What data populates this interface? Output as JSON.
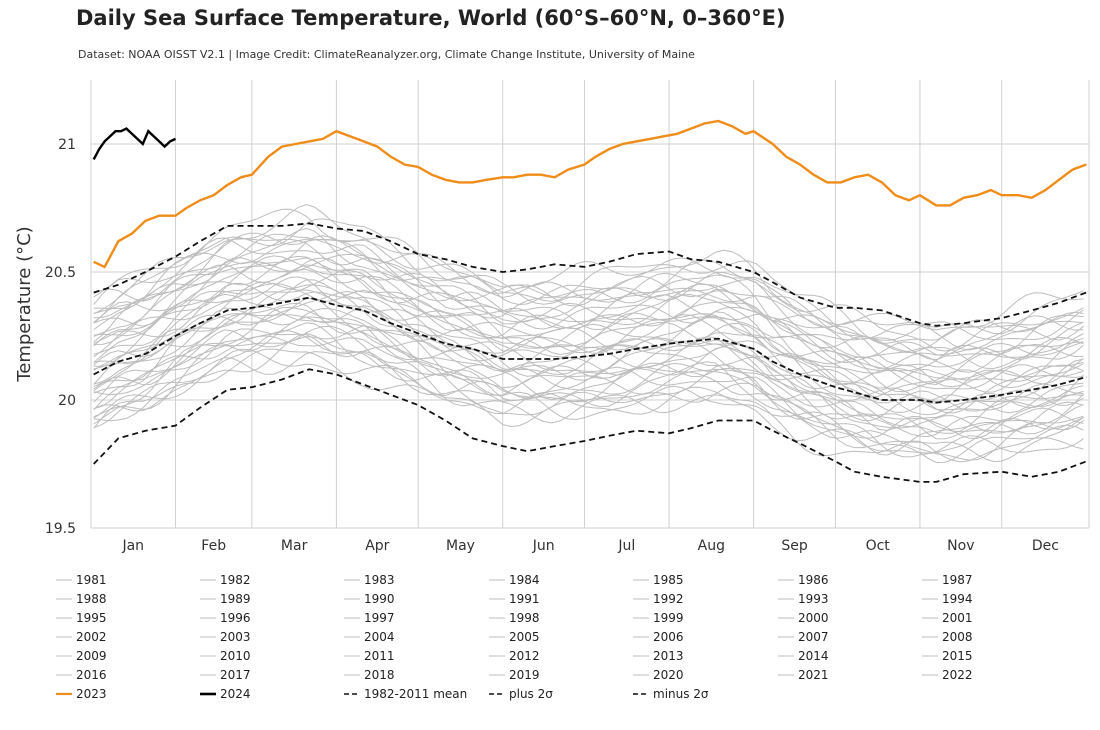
{
  "title": "Daily Sea Surface Temperature, World (60°S–60°N, 0–360°E)",
  "subtitle": "Dataset: NOAA OISST V2.1 | Image Credit: ClimateReanalyzer.org, Climate Change Institute, University of Maine",
  "colors": {
    "grid": "#d0d0d0",
    "historical": "#bdbdbd",
    "y2023": "#f08c1a",
    "y2024": "#000000",
    "stats": "#111111"
  },
  "chart_data": {
    "type": "line",
    "title": "Daily Sea Surface Temperature, World (60°S–60°N, 0–360°E)",
    "ylabel": "Temperature (°C)",
    "xlabel": "",
    "ylim": [
      19.5,
      21.25
    ],
    "xlim": [
      0,
      366
    ],
    "yticks": [
      19.5,
      20,
      20.5,
      21
    ],
    "ytick_labels": [
      "19.5",
      "20",
      "20.5",
      "21"
    ],
    "grid": true,
    "months": [
      "Jan",
      "Feb",
      "Mar",
      "Apr",
      "May",
      "Jun",
      "Jul",
      "Aug",
      "Sep",
      "Oct",
      "Nov",
      "Dec"
    ],
    "month_starts": [
      0,
      31,
      59,
      90,
      120,
      151,
      181,
      212,
      243,
      273,
      304,
      334,
      366
    ],
    "legend_position": "bottom",
    "historical_years": [
      "1981",
      "1982",
      "1983",
      "1984",
      "1985",
      "1986",
      "1987",
      "1988",
      "1989",
      "1990",
      "1991",
      "1992",
      "1993",
      "1994",
      "1995",
      "1996",
      "1997",
      "1998",
      "1999",
      "2000",
      "2001",
      "2002",
      "2003",
      "2004",
      "2005",
      "2006",
      "2007",
      "2008",
      "2009",
      "2010",
      "2011",
      "2012",
      "2013",
      "2014",
      "2015",
      "2016",
      "2017",
      "2018",
      "2019",
      "2020",
      "2021",
      "2022"
    ],
    "highlight_series": [
      {
        "name": "2023",
        "color": "#f08c1a",
        "x": [
          1,
          5,
          10,
          15,
          20,
          25,
          31,
          35,
          40,
          45,
          50,
          55,
          59,
          65,
          70,
          75,
          80,
          85,
          90,
          95,
          100,
          105,
          110,
          115,
          120,
          125,
          130,
          135,
          140,
          145,
          151,
          155,
          160,
          165,
          170,
          175,
          181,
          185,
          190,
          195,
          200,
          205,
          210,
          215,
          220,
          225,
          230,
          235,
          240,
          243,
          250,
          255,
          260,
          265,
          270,
          275,
          280,
          285,
          290,
          295,
          300,
          304,
          310,
          315,
          320,
          325,
          330,
          334,
          340,
          345,
          350,
          355,
          360,
          365
        ],
        "values": [
          20.54,
          20.52,
          20.62,
          20.65,
          20.7,
          20.72,
          20.72,
          20.75,
          20.78,
          20.8,
          20.84,
          20.87,
          20.88,
          20.95,
          20.99,
          21.0,
          21.01,
          21.02,
          21.05,
          21.03,
          21.01,
          20.99,
          20.95,
          20.92,
          20.91,
          20.88,
          20.86,
          20.85,
          20.85,
          20.86,
          20.87,
          20.87,
          20.88,
          20.88,
          20.87,
          20.9,
          20.92,
          20.95,
          20.98,
          21.0,
          21.01,
          21.02,
          21.03,
          21.04,
          21.06,
          21.08,
          21.09,
          21.07,
          21.04,
          21.05,
          21.0,
          20.95,
          20.92,
          20.88,
          20.85,
          20.85,
          20.87,
          20.88,
          20.85,
          20.8,
          20.78,
          20.8,
          20.76,
          20.76,
          20.79,
          20.8,
          20.82,
          20.8,
          20.8,
          20.79,
          20.82,
          20.86,
          20.9,
          20.92
        ]
      },
      {
        "name": "2024",
        "color": "#000000",
        "x": [
          1,
          3,
          5,
          7,
          9,
          11,
          13,
          15,
          17,
          19,
          21,
          23,
          25,
          27,
          29,
          31
        ],
        "values": [
          20.94,
          20.98,
          21.01,
          21.03,
          21.05,
          21.05,
          21.06,
          21.04,
          21.02,
          21.0,
          21.05,
          21.03,
          21.01,
          20.99,
          21.01,
          21.02
        ]
      }
    ],
    "stat_series": [
      {
        "name": "1982-2011 mean",
        "x": [
          1,
          10,
          20,
          31,
          40,
          50,
          59,
          70,
          80,
          90,
          100,
          110,
          120,
          130,
          140,
          151,
          160,
          170,
          181,
          190,
          200,
          212,
          220,
          230,
          243,
          250,
          260,
          273,
          280,
          290,
          304,
          310,
          320,
          334,
          345,
          355,
          365
        ],
        "values": [
          20.1,
          20.15,
          20.18,
          20.25,
          20.3,
          20.35,
          20.36,
          20.38,
          20.4,
          20.37,
          20.35,
          20.3,
          20.26,
          20.22,
          20.2,
          20.16,
          20.16,
          20.16,
          20.17,
          20.18,
          20.2,
          20.22,
          20.23,
          20.24,
          20.2,
          20.15,
          20.1,
          20.05,
          20.03,
          20.0,
          20.0,
          19.99,
          20.0,
          20.02,
          20.04,
          20.06,
          20.09
        ]
      },
      {
        "name": "plus 2σ",
        "x": [
          1,
          10,
          20,
          31,
          40,
          50,
          59,
          70,
          80,
          90,
          100,
          110,
          120,
          130,
          140,
          151,
          160,
          170,
          181,
          190,
          200,
          212,
          220,
          230,
          243,
          250,
          260,
          273,
          280,
          290,
          304,
          310,
          320,
          334,
          345,
          355,
          365
        ],
        "values": [
          20.42,
          20.45,
          20.5,
          20.56,
          20.62,
          20.68,
          20.68,
          20.68,
          20.69,
          20.67,
          20.66,
          20.62,
          20.57,
          20.55,
          20.52,
          20.5,
          20.51,
          20.53,
          20.52,
          20.54,
          20.57,
          20.58,
          20.55,
          20.54,
          20.5,
          20.46,
          20.4,
          20.36,
          20.36,
          20.35,
          20.3,
          20.29,
          20.3,
          20.32,
          20.35,
          20.38,
          20.42
        ]
      },
      {
        "name": "minus 2σ",
        "x": [
          1,
          10,
          20,
          31,
          40,
          50,
          59,
          70,
          80,
          90,
          100,
          110,
          120,
          130,
          140,
          151,
          160,
          170,
          181,
          190,
          200,
          212,
          220,
          230,
          243,
          250,
          260,
          273,
          280,
          290,
          304,
          310,
          320,
          334,
          345,
          355,
          365
        ],
        "values": [
          19.75,
          19.85,
          19.88,
          19.9,
          19.97,
          20.04,
          20.05,
          20.08,
          20.12,
          20.1,
          20.06,
          20.02,
          19.98,
          19.92,
          19.85,
          19.82,
          19.8,
          19.82,
          19.84,
          19.86,
          19.88,
          19.87,
          19.89,
          19.92,
          19.92,
          19.88,
          19.83,
          19.76,
          19.72,
          19.7,
          19.68,
          19.68,
          19.71,
          19.72,
          19.7,
          19.72,
          19.76
        ]
      }
    ],
    "legend": [
      "1981",
      "1982",
      "1983",
      "1984",
      "1985",
      "1986",
      "1987",
      "1988",
      "1989",
      "1990",
      "1991",
      "1992",
      "1993",
      "1994",
      "1995",
      "1996",
      "1997",
      "1998",
      "1999",
      "2000",
      "2001",
      "2002",
      "2003",
      "2004",
      "2005",
      "2006",
      "2007",
      "2008",
      "2009",
      "2010",
      "2011",
      "2012",
      "2013",
      "2014",
      "2015",
      "2016",
      "2017",
      "2018",
      "2019",
      "2020",
      "2021",
      "2022",
      "2023",
      "2024",
      "1982-2011 mean",
      "plus 2σ",
      "minus 2σ"
    ]
  }
}
